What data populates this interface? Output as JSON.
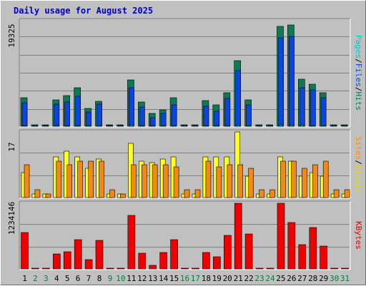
{
  "chart_data": {
    "type": "bar",
    "title": "Daily usage for August 2025",
    "x": [
      "1",
      "2",
      "3",
      "4",
      "5",
      "6",
      "7",
      "8",
      "9",
      "10",
      "11",
      "12",
      "13",
      "14",
      "15",
      "16",
      "17",
      "18",
      "19",
      "20",
      "21",
      "22",
      "23",
      "24",
      "25",
      "26",
      "27",
      "28",
      "29",
      "30",
      "31"
    ],
    "weekend_days": [
      "2",
      "3",
      "9",
      "10",
      "16",
      "17",
      "23",
      "24",
      "30",
      "31"
    ],
    "panels": [
      {
        "ylabel_max": "19325",
        "ymax": 19325,
        "legend": [
          {
            "text": "Pages",
            "color": "#00c8c8"
          },
          {
            "text": "/",
            "color": "#000000"
          },
          {
            "text": "Files",
            "color": "#0050d0"
          },
          {
            "text": "/",
            "color": "#000000"
          },
          {
            "text": "Hits",
            "color": "#008060"
          }
        ],
        "series": [
          {
            "name": "Hits",
            "color": "#0e7a55",
            "values": [
              5230,
              300,
              300,
              4850,
              5550,
              7010,
              3260,
              4580,
              300,
              300,
              8550,
              4400,
              2380,
              3040,
              5230,
              300,
              300,
              4700,
              3970,
              6170,
              12000,
              4850,
              300,
              300,
              18300,
              18500,
              8630,
              7710,
              6170,
              300,
              300
            ]
          },
          {
            "name": "Files",
            "color": "#0b44e0",
            "values": [
              4250,
              100,
              100,
              4080,
              4480,
              5510,
              2550,
              3990,
              100,
              100,
              7020,
              3500,
              1510,
              2330,
              3910,
              100,
              100,
              3680,
              2740,
              5140,
              10150,
              3960,
              100,
              100,
              16140,
              16440,
              7010,
              6670,
              5240,
              100,
              100
            ]
          },
          {
            "name": "Pages",
            "color": "#00b8b8",
            "values": [
              150,
              20,
              20,
              140,
              150,
              170,
              80,
              120,
              20,
              20,
              200,
              110,
              60,
              80,
              130,
              20,
              20,
              120,
              90,
              150,
              260,
              120,
              20,
              20,
              300,
              310,
              200,
              190,
              160,
              20,
              20
            ]
          }
        ]
      },
      {
        "ylabel_max": "17",
        "ymax": 17,
        "legend": [
          {
            "text": "Sites",
            "color": "#ff9000"
          },
          {
            "text": "/",
            "color": "#000000"
          },
          {
            "text": "Visits",
            "color": "#e8d800"
          }
        ],
        "series": [
          {
            "name": "Visits",
            "color": "#ffff20",
            "values": [
              6.5,
              1,
              1,
              10.5,
              12,
              10.5,
              7.5,
              10,
              1,
              1,
              14,
              9.5,
              9,
              10,
              10.5,
              1,
              1,
              10.5,
              10.5,
              10.5,
              17,
              5.5,
              1,
              1,
              10.5,
              9.5,
              5.5,
              6.5,
              5.5,
              1,
              1
            ]
          },
          {
            "name": "Sites",
            "color": "#f08a16",
            "values": [
              8.5,
              2,
              1,
              9.5,
              8.5,
              9.5,
              9.5,
              9.5,
              2,
              1,
              8.5,
              8.5,
              8.5,
              8.5,
              8,
              2,
              2,
              9.5,
              8,
              8.5,
              8.5,
              7.5,
              2,
              2,
              9.5,
              9.5,
              7.5,
              8.5,
              9.5,
              2,
              2
            ]
          }
        ]
      },
      {
        "ylabel_max": "1234146",
        "ymax": 1234146,
        "legend": [
          {
            "text": "KBytes",
            "color": "#e80000"
          }
        ],
        "series": [
          {
            "name": "KBytes",
            "color": "#ee0000",
            "values": [
              688000,
              8000,
              8000,
              285000,
              325000,
              553000,
              170000,
              535000,
              8000,
              8000,
              1006000,
              292000,
              63000,
              311000,
              556000,
              8000,
              8000,
              303000,
              230000,
              632000,
              1234146,
              654000,
              8000,
              8000,
              1234146,
              873000,
              452000,
              780000,
              435000,
              8000,
              8000
            ]
          }
        ]
      }
    ]
  }
}
